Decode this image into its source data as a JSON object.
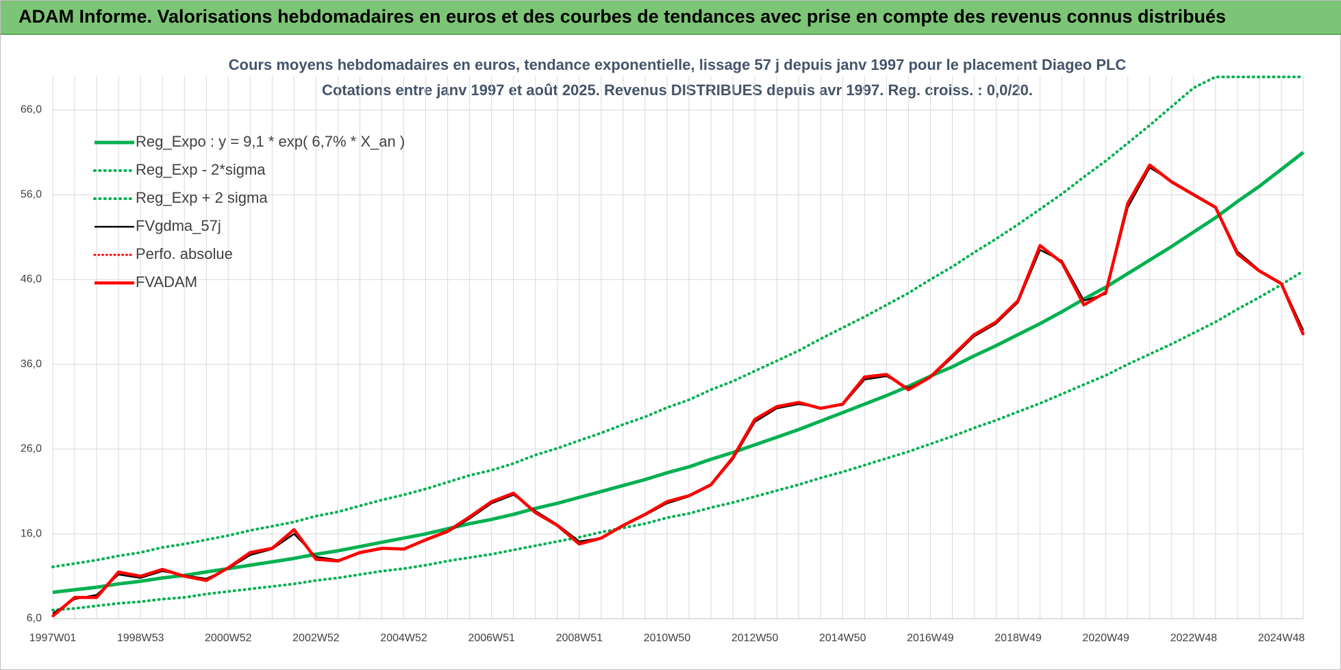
{
  "header": {
    "title": "ADAM Informe. Valorisations hebdomadaires en euros et des courbes de tendances avec prise en compte des revenus connus distribués"
  },
  "chart_data": {
    "type": "line",
    "title": "Cours moyens hebdomadaires en euros, tendance exponentielle, lissage 57 j depuis janv 1997 pour le placement Diageo PLC",
    "subtitle": "Cotations entre janv 1997 et août 2025. Revenus DISTRIBUES depuis avr 1997. Reg. croiss. : 0,0/20.",
    "categories": [
      "1997W01",
      null,
      null,
      null,
      "1998W53",
      null,
      null,
      null,
      "2000W52",
      null,
      null,
      null,
      "2002W52",
      null,
      null,
      null,
      "2004W52",
      null,
      null,
      null,
      "2006W51",
      null,
      null,
      null,
      "2008W51",
      null,
      null,
      null,
      "2010W50",
      null,
      null,
      null,
      "2012W50",
      null,
      null,
      null,
      "2014W50",
      null,
      null,
      null,
      "2016W49",
      null,
      null,
      null,
      "2018W49",
      null,
      null,
      null,
      "2020W49",
      null,
      null,
      null,
      "2022W48",
      null,
      null,
      null,
      "2024W48",
      null
    ],
    "ylim": [
      6,
      70
    ],
    "yticks": [
      {
        "value": 6,
        "label": "6,0"
      },
      {
        "value": 16,
        "label": "16,0"
      },
      {
        "value": 26,
        "label": "26,0"
      },
      {
        "value": 36,
        "label": "36,0"
      },
      {
        "value": 46,
        "label": "46,0"
      },
      {
        "value": 56,
        "label": "56,0"
      },
      {
        "value": 66,
        "label": "66,0"
      }
    ],
    "grid": true,
    "legend": "upper left",
    "series": [
      {
        "name": "Reg_Expo : y = 9,1 * exp( 6,7% *  X_an )",
        "color": "#00b050",
        "line_style": "solid",
        "values": [
          9.1,
          9.4,
          9.7,
          10.1,
          10.4,
          10.8,
          11.1,
          11.5,
          11.9,
          12.3,
          12.7,
          13.1,
          13.6,
          14.0,
          14.5,
          15.0,
          15.5,
          16.0,
          16.6,
          17.2,
          17.7,
          18.3,
          19.0,
          19.6,
          20.3,
          21.0,
          21.7,
          22.4,
          23.2,
          23.9,
          24.8,
          25.6,
          26.5,
          27.4,
          28.3,
          29.3,
          30.3,
          31.3,
          32.3,
          33.4,
          34.6,
          35.7,
          37.0,
          38.2,
          39.5,
          40.8,
          42.2,
          43.7,
          45.1,
          46.7,
          48.3,
          49.9,
          51.6,
          53.3,
          55.2,
          57.0,
          59.0,
          61.0
        ]
      },
      {
        "name": "Reg_Exp - 2*sigma",
        "color": "#00b050",
        "line_style": "dotted",
        "values": [
          7.0,
          7.2,
          7.5,
          7.8,
          8.0,
          8.3,
          8.5,
          8.9,
          9.2,
          9.5,
          9.8,
          10.1,
          10.5,
          10.8,
          11.2,
          11.6,
          11.9,
          12.3,
          12.8,
          13.2,
          13.6,
          14.1,
          14.6,
          15.1,
          15.6,
          16.2,
          16.7,
          17.2,
          17.9,
          18.4,
          19.1,
          19.7,
          20.4,
          21.1,
          21.8,
          22.6,
          23.3,
          24.1,
          24.9,
          25.7,
          26.6,
          27.5,
          28.5,
          29.4,
          30.4,
          31.4,
          32.5,
          33.6,
          34.7,
          36.0,
          37.2,
          38.4,
          39.7,
          41.0,
          42.5,
          43.9,
          45.4,
          47.0
        ]
      },
      {
        "name": "Reg_Exp + 2 sigma",
        "color": "#00b050",
        "line_style": "dotted",
        "values": [
          12.1,
          12.5,
          12.9,
          13.4,
          13.8,
          14.4,
          14.8,
          15.3,
          15.8,
          16.4,
          16.9,
          17.4,
          18.1,
          18.6,
          19.3,
          20.0,
          20.6,
          21.3,
          22.1,
          22.9,
          23.5,
          24.3,
          25.3,
          26.1,
          27.0,
          27.9,
          28.9,
          29.8,
          30.9,
          31.8,
          33.0,
          34.0,
          35.2,
          36.4,
          37.6,
          39.0,
          40.3,
          41.6,
          43.0,
          44.4,
          46.0,
          47.5,
          49.2,
          50.8,
          52.5,
          54.3,
          56.1,
          58.1,
          60.0,
          62.1,
          64.2,
          66.4,
          68.6,
          69.9,
          69.9,
          69.9,
          69.9,
          69.9
        ]
      },
      {
        "name": "FVgdma_57j",
        "color": "#000000",
        "line_style": "solid",
        "values": [
          6.6,
          8.3,
          8.8,
          11.2,
          10.8,
          11.6,
          11.1,
          10.7,
          11.9,
          13.5,
          14.2,
          16.0,
          13.3,
          12.9,
          13.7,
          14.2,
          14.3,
          15.2,
          16.2,
          17.8,
          19.6,
          20.6,
          18.7,
          17.1,
          15.1,
          15.5,
          16.9,
          18.2,
          19.6,
          20.4,
          21.7,
          24.8,
          29.2,
          30.8,
          31.3,
          30.9,
          31.2,
          34.2,
          34.6,
          33.2,
          34.4,
          36.8,
          39.3,
          40.8,
          43.3,
          49.5,
          48.2,
          43.5,
          44.3,
          54.5,
          59.2,
          57.6,
          56.1,
          54.6,
          49.3,
          47.1,
          45.6,
          40.0
        ]
      },
      {
        "name": "Perfo. absolue",
        "color": "#ff0000",
        "line_style": "dotted",
        "values": [
          6.3,
          8.5,
          8.5,
          11.5,
          11.0,
          11.8,
          11.0,
          10.5,
          12.0,
          13.8,
          14.3,
          16.5,
          13.0,
          12.8,
          13.8,
          14.3,
          14.2,
          15.3,
          16.3,
          18.0,
          19.8,
          20.8,
          18.5,
          17.0,
          14.8,
          15.5,
          17.0,
          18.3,
          19.8,
          20.5,
          21.8,
          25.0,
          29.5,
          31.0,
          31.5,
          30.8,
          31.3,
          34.5,
          34.8,
          33.0,
          34.5,
          37.0,
          39.5,
          41.0,
          43.5,
          50.0,
          48.0,
          43.0,
          44.5,
          55.0,
          59.5,
          57.5,
          56.0,
          54.5,
          49.0,
          47.0,
          45.5,
          39.5
        ]
      },
      {
        "name": "FVADAM",
        "color": "#ff0000",
        "line_style": "solid",
        "values": [
          6.3,
          8.5,
          8.5,
          11.5,
          11.0,
          11.8,
          11.0,
          10.5,
          12.0,
          13.8,
          14.3,
          16.5,
          13.0,
          12.8,
          13.8,
          14.3,
          14.2,
          15.3,
          16.3,
          18.0,
          19.8,
          20.8,
          18.5,
          17.0,
          14.8,
          15.5,
          17.0,
          18.3,
          19.8,
          20.5,
          21.8,
          25.0,
          29.5,
          31.0,
          31.5,
          30.8,
          31.3,
          34.5,
          34.8,
          33.0,
          34.5,
          37.0,
          39.5,
          41.0,
          43.5,
          50.0,
          48.0,
          43.0,
          44.5,
          55.0,
          59.5,
          57.5,
          56.0,
          54.5,
          49.0,
          47.0,
          45.5,
          39.5
        ]
      }
    ]
  }
}
